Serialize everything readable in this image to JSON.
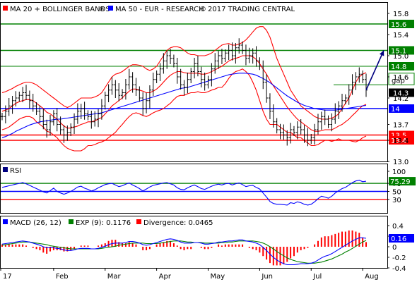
{
  "chart_data": {
    "type": "line",
    "instrument": "EUR",
    "header": {
      "ma20_label": "MA 20 + BOLLINGER BANDS",
      "ma50_label": "MA 50 - EUR - RESEARCH",
      "copyright": "2017 TRADING CENTRAL"
    },
    "months": [
      "17",
      "Feb",
      "Mar",
      "Apr",
      "May",
      "Jun",
      "Jul",
      "Aug"
    ],
    "price_panel": {
      "ylim": [
        13.0,
        16.0
      ],
      "yticks": [
        "15.8",
        "15.4",
        "15.0",
        "14.6",
        "14.2",
        "13.7",
        "13.4",
        "13.0"
      ],
      "ytick_values": [
        15.8,
        15.4,
        15.0,
        14.6,
        14.2,
        13.7,
        13.4,
        13.0
      ],
      "last_price": "14.3",
      "last_value": 14.3,
      "levels": [
        {
          "label": "15.6",
          "value": 15.6,
          "color": "#008000"
        },
        {
          "label": "15.1",
          "value": 15.1,
          "color": "#008000"
        },
        {
          "label": "14.8",
          "value": 14.8,
          "color": "#008000"
        },
        {
          "label": "14",
          "value": 14.0,
          "color": "#0000ff"
        },
        {
          "label": "13.5",
          "value": 13.5,
          "color": "#ff0000"
        },
        {
          "label": "13.4",
          "value": 13.4,
          "color": "#ff0000"
        }
      ],
      "gap_label": "gap",
      "gap_range": [
        14.67,
        14.45
      ],
      "arrow_target": 15.1,
      "close": [
        13.85,
        13.95,
        14.05,
        14.15,
        14.2,
        14.25,
        14.3,
        14.25,
        14.15,
        14.05,
        13.95,
        13.85,
        13.7,
        13.6,
        13.75,
        13.9,
        13.7,
        13.6,
        13.5,
        13.55,
        13.65,
        13.8,
        13.95,
        14.0,
        13.9,
        13.85,
        13.75,
        13.8,
        13.9,
        14.05,
        14.25,
        14.35,
        14.45,
        14.35,
        14.25,
        14.3,
        14.45,
        14.6,
        14.45,
        14.35,
        14.2,
        14.0,
        14.15,
        14.35,
        14.55,
        14.65,
        14.75,
        14.9,
        15.0,
        14.95,
        14.85,
        14.6,
        14.45,
        14.4,
        14.55,
        14.7,
        14.85,
        14.7,
        14.55,
        14.45,
        14.55,
        14.75,
        14.9,
        15.0,
        14.95,
        15.05,
        15.1,
        15.0,
        15.15,
        15.2,
        15.1,
        14.95,
        15.0,
        15.05,
        14.9,
        14.8,
        14.5,
        14.2,
        13.95,
        13.75,
        13.6,
        13.55,
        13.5,
        13.45,
        13.6,
        13.55,
        13.65,
        13.6,
        13.5,
        13.4,
        13.45,
        13.6,
        13.75,
        13.85,
        13.8,
        13.7,
        13.8,
        13.95,
        14.05,
        14.15,
        14.2,
        14.35,
        14.5,
        14.6,
        14.65,
        14.55,
        14.35
      ],
      "ma20": [
        13.95,
        13.97,
        14.0,
        14.05,
        14.1,
        14.13,
        14.15,
        14.17,
        14.17,
        14.15,
        14.1,
        14.05,
        14.0,
        13.93,
        13.9,
        13.85,
        13.8,
        13.73,
        13.67,
        13.63,
        13.63,
        13.65,
        13.67,
        13.7,
        13.72,
        13.75,
        13.75,
        13.77,
        13.8,
        13.83,
        13.9,
        13.97,
        14.05,
        14.1,
        14.15,
        14.2,
        14.27,
        14.33,
        14.37,
        14.37,
        14.35,
        14.33,
        14.3,
        14.3,
        14.33,
        14.37,
        14.43,
        14.5,
        14.57,
        14.63,
        14.67,
        14.7,
        14.7,
        14.68,
        14.67,
        14.67,
        14.67,
        14.67,
        14.65,
        14.65,
        14.67,
        14.7,
        14.73,
        14.77,
        14.8,
        14.85,
        14.9,
        14.93,
        14.95,
        14.97,
        15.0,
        15.0,
        15.0,
        14.98,
        14.93,
        14.85,
        14.75,
        14.65,
        14.53,
        14.43,
        14.33,
        14.23,
        14.13,
        14.03,
        13.95,
        13.87,
        13.8,
        13.75,
        13.7,
        13.65,
        13.6,
        13.57,
        13.57,
        13.58,
        13.6,
        13.6,
        13.6,
        13.63,
        13.67,
        13.7,
        13.75,
        13.8,
        13.87,
        13.93,
        14.0,
        14.05,
        14.08
      ],
      "ma50": [
        13.45,
        13.47,
        13.5,
        13.53,
        13.57,
        13.6,
        13.63,
        13.66,
        13.69,
        13.71,
        13.73,
        13.75,
        13.76,
        13.77,
        13.78,
        13.79,
        13.8,
        13.8,
        13.81,
        13.82,
        13.83,
        13.84,
        13.85,
        13.86,
        13.87,
        13.88,
        13.89,
        13.9,
        13.91,
        13.92,
        13.94,
        13.96,
        13.98,
        14.0,
        14.02,
        14.04,
        14.06,
        14.08,
        14.1,
        14.12,
        14.14,
        14.16,
        14.18,
        14.2,
        14.22,
        14.24,
        14.26,
        14.28,
        14.3,
        14.32,
        14.34,
        14.36,
        14.38,
        14.39,
        14.4,
        14.42,
        14.44,
        14.46,
        14.48,
        14.5,
        14.52,
        14.54,
        14.56,
        14.58,
        14.6,
        14.62,
        14.64,
        14.65,
        14.66,
        14.67,
        14.67,
        14.67,
        14.66,
        14.65,
        14.63,
        14.6,
        14.57,
        14.53,
        14.49,
        14.44,
        14.39,
        14.34,
        14.29,
        14.24,
        14.2,
        14.16,
        14.12,
        14.09,
        14.06,
        14.04,
        14.02,
        14.0,
        13.99,
        13.98,
        13.97,
        13.97,
        13.97,
        13.97,
        13.98,
        13.99,
        14.0,
        14.01,
        14.02,
        14.03,
        14.04,
        14.05,
        14.06
      ],
      "bb_upper": [
        14.3,
        14.32,
        14.35,
        14.38,
        14.42,
        14.45,
        14.48,
        14.5,
        14.5,
        14.48,
        14.45,
        14.4,
        14.35,
        14.3,
        14.25,
        14.2,
        14.15,
        14.1,
        14.05,
        14.02,
        14.05,
        14.1,
        14.15,
        14.2,
        14.2,
        14.2,
        14.2,
        14.22,
        14.25,
        14.3,
        14.4,
        14.5,
        14.6,
        14.65,
        14.67,
        14.7,
        14.75,
        14.8,
        14.83,
        14.83,
        14.82,
        14.8,
        14.75,
        14.72,
        14.75,
        14.8,
        14.9,
        15.0,
        15.1,
        15.15,
        15.17,
        15.17,
        15.15,
        15.1,
        15.05,
        15.02,
        15.02,
        15.0,
        15.0,
        15.0,
        15.02,
        15.05,
        15.1,
        15.15,
        15.2,
        15.22,
        15.23,
        15.2,
        15.2,
        15.22,
        15.25,
        15.3,
        15.37,
        15.45,
        15.52,
        15.55,
        15.55,
        15.48,
        15.35,
        15.15,
        14.95,
        14.8,
        14.65,
        14.5,
        14.35,
        14.25,
        14.15,
        14.05,
        14.0,
        13.95,
        13.9,
        13.85,
        13.82,
        13.8,
        13.8,
        13.8,
        13.82,
        13.85,
        13.9,
        14.0,
        14.1,
        14.2,
        14.35,
        14.5,
        14.6,
        14.65,
        14.68
      ],
      "bb_lower": [
        13.6,
        13.62,
        13.65,
        13.7,
        13.75,
        13.8,
        13.83,
        13.85,
        13.85,
        13.82,
        13.75,
        13.7,
        13.65,
        13.57,
        13.55,
        13.5,
        13.45,
        13.37,
        13.3,
        13.25,
        13.22,
        13.2,
        13.2,
        13.2,
        13.24,
        13.3,
        13.3,
        13.32,
        13.35,
        13.37,
        13.4,
        13.45,
        13.5,
        13.55,
        13.63,
        13.7,
        13.78,
        13.85,
        13.9,
        13.92,
        13.9,
        13.87,
        13.85,
        13.88,
        13.92,
        13.95,
        13.97,
        14.0,
        14.05,
        14.1,
        14.17,
        14.23,
        14.25,
        14.25,
        14.28,
        14.3,
        14.3,
        14.32,
        14.3,
        14.3,
        14.32,
        14.35,
        14.37,
        14.4,
        14.4,
        14.47,
        14.57,
        14.65,
        14.7,
        14.72,
        14.75,
        14.7,
        14.63,
        14.5,
        14.35,
        14.15,
        13.95,
        13.8,
        13.7,
        13.7,
        13.7,
        13.65,
        13.6,
        13.55,
        13.55,
        13.5,
        13.45,
        13.45,
        13.4,
        13.35,
        13.3,
        13.3,
        13.32,
        13.36,
        13.4,
        13.4,
        13.38,
        13.4,
        13.43,
        13.4,
        13.4,
        13.4,
        13.38,
        13.37,
        13.4,
        13.45,
        13.48
      ]
    },
    "rsi_panel": {
      "label": "RSI",
      "ylim": [
        0,
        100
      ],
      "yticks": [
        "100",
        "70",
        "50",
        "30"
      ],
      "ytick_values": [
        100,
        70,
        50,
        30
      ],
      "last_value": "75.29",
      "last_number": 75.29,
      "levels": [
        {
          "value": 70,
          "color": "#008000"
        },
        {
          "value": 50,
          "color": "#0000ff"
        },
        {
          "value": 30,
          "color": "#ff0000"
        }
      ],
      "values": [
        60,
        62,
        64,
        66,
        68,
        70,
        72,
        69,
        65,
        61,
        57,
        53,
        49,
        46,
        52,
        58,
        50,
        46,
        43,
        46,
        50,
        55,
        61,
        63,
        58,
        55,
        51,
        54,
        59,
        63,
        67,
        69,
        70,
        66,
        62,
        64,
        68,
        71,
        66,
        62,
        57,
        51,
        56,
        61,
        65,
        67,
        69,
        71,
        72,
        69,
        66,
        59,
        55,
        54,
        59,
        63,
        66,
        62,
        57,
        55,
        59,
        63,
        66,
        68,
        66,
        69,
        70,
        66,
        69,
        71,
        67,
        62,
        64,
        65,
        60,
        56,
        46,
        36,
        25,
        20,
        18,
        18,
        17,
        16,
        22,
        20,
        24,
        22,
        18,
        16,
        18,
        24,
        32,
        38,
        36,
        33,
        38,
        46,
        52,
        57,
        60,
        66,
        72,
        76,
        78,
        74,
        75.29
      ]
    },
    "macd_panel": {
      "labels": {
        "macd": "MACD (26, 12)",
        "exp": "EXP (9): 0.1176",
        "divergence": "Divergence: 0.0465"
      },
      "ylim": [
        -0.4,
        0.4
      ],
      "yticks": [
        "0.4",
        "0.2",
        "0",
        "-0.2",
        "-0.4"
      ],
      "ytick_values": [
        0.4,
        0.2,
        0.0,
        -0.2,
        -0.4
      ],
      "last_value": "0.16",
      "last_number": 0.16,
      "macd": [
        0.05,
        0.06,
        0.07,
        0.08,
        0.09,
        0.1,
        0.11,
        0.1,
        0.09,
        0.07,
        0.05,
        0.03,
        0.0,
        -0.02,
        -0.02,
        -0.02,
        -0.03,
        -0.04,
        -0.06,
        -0.07,
        -0.07,
        -0.06,
        -0.04,
        -0.03,
        -0.03,
        -0.03,
        -0.04,
        -0.04,
        -0.03,
        -0.01,
        0.01,
        0.04,
        0.06,
        0.07,
        0.07,
        0.07,
        0.08,
        0.1,
        0.1,
        0.09,
        0.07,
        0.04,
        0.03,
        0.04,
        0.06,
        0.08,
        0.1,
        0.12,
        0.14,
        0.15,
        0.14,
        0.12,
        0.09,
        0.07,
        0.07,
        0.07,
        0.08,
        0.08,
        0.07,
        0.05,
        0.05,
        0.06,
        0.07,
        0.09,
        0.09,
        0.1,
        0.11,
        0.11,
        0.12,
        0.13,
        0.13,
        0.11,
        0.1,
        0.09,
        0.07,
        0.04,
        -0.01,
        -0.07,
        -0.14,
        -0.2,
        -0.25,
        -0.29,
        -0.32,
        -0.34,
        -0.34,
        -0.34,
        -0.33,
        -0.32,
        -0.32,
        -0.32,
        -0.31,
        -0.29,
        -0.25,
        -0.21,
        -0.18,
        -0.16,
        -0.13,
        -0.09,
        -0.05,
        -0.01,
        0.03,
        0.07,
        0.11,
        0.14,
        0.17,
        0.17,
        0.16
      ],
      "signal": [
        0.03,
        0.04,
        0.05,
        0.06,
        0.07,
        0.08,
        0.09,
        0.09,
        0.09,
        0.08,
        0.07,
        0.06,
        0.05,
        0.04,
        0.02,
        0.01,
        0.0,
        -0.01,
        -0.02,
        -0.03,
        -0.04,
        -0.04,
        -0.04,
        -0.04,
        -0.04,
        -0.04,
        -0.04,
        -0.04,
        -0.04,
        -0.03,
        -0.02,
        -0.01,
        0.0,
        0.01,
        0.03,
        0.04,
        0.05,
        0.06,
        0.07,
        0.07,
        0.07,
        0.07,
        0.06,
        0.06,
        0.06,
        0.06,
        0.07,
        0.08,
        0.09,
        0.1,
        0.11,
        0.11,
        0.11,
        0.1,
        0.09,
        0.09,
        0.08,
        0.08,
        0.08,
        0.07,
        0.07,
        0.07,
        0.07,
        0.07,
        0.08,
        0.08,
        0.09,
        0.09,
        0.1,
        0.11,
        0.11,
        0.11,
        0.11,
        0.11,
        0.1,
        0.09,
        0.07,
        0.04,
        0.0,
        -0.04,
        -0.09,
        -0.13,
        -0.17,
        -0.21,
        -0.24,
        -0.26,
        -0.28,
        -0.29,
        -0.3,
        -0.31,
        -0.31,
        -0.31,
        -0.3,
        -0.29,
        -0.27,
        -0.25,
        -0.23,
        -0.2,
        -0.17,
        -0.14,
        -0.1,
        -0.07,
        -0.03,
        0.01,
        0.05,
        0.09,
        0.12
      ]
    }
  }
}
